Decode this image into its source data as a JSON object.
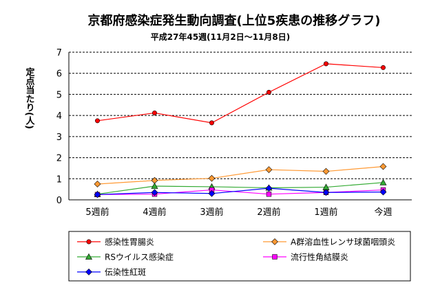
{
  "chart_data": {
    "type": "line",
    "title": "京都府感染症発生動向調査(上位5疾患の推移グラフ)",
    "subtitle": "平成27年45週(11月2日～11月8日)",
    "ylabel": "定点当たり(人)",
    "xlabel": "",
    "ylim": [
      0,
      7
    ],
    "yticks": [
      0,
      1,
      2,
      3,
      4,
      5,
      6,
      7
    ],
    "grid": true,
    "legend_position": "bottom",
    "categories": [
      "5週前",
      "4週前",
      "3週前",
      "2週前",
      "1週前",
      "今週"
    ],
    "series": [
      {
        "name": "感染性胃腸炎",
        "color": "#ff0000",
        "marker": "circle",
        "values": [
          3.75,
          4.12,
          3.65,
          5.1,
          6.45,
          6.27
        ]
      },
      {
        "name": "A群溶血性レンサ球菌咽頭炎",
        "color": "#ff9933",
        "marker": "diamond",
        "values": [
          0.75,
          0.92,
          1.02,
          1.43,
          1.35,
          1.58
        ]
      },
      {
        "name": "RSウイルス感染症",
        "color": "#33aa33",
        "marker": "triangle",
        "values": [
          0.27,
          0.65,
          0.62,
          0.57,
          0.6,
          0.82
        ]
      },
      {
        "name": "流行性角結膜炎",
        "color": "#ff00ff",
        "marker": "square",
        "values": [
          0.25,
          0.27,
          0.47,
          0.27,
          0.35,
          0.47
        ]
      },
      {
        "name": "伝染性紅斑",
        "color": "#0000ff",
        "marker": "diamond",
        "values": [
          0.25,
          0.35,
          0.3,
          0.55,
          0.35,
          0.37
        ]
      }
    ]
  }
}
